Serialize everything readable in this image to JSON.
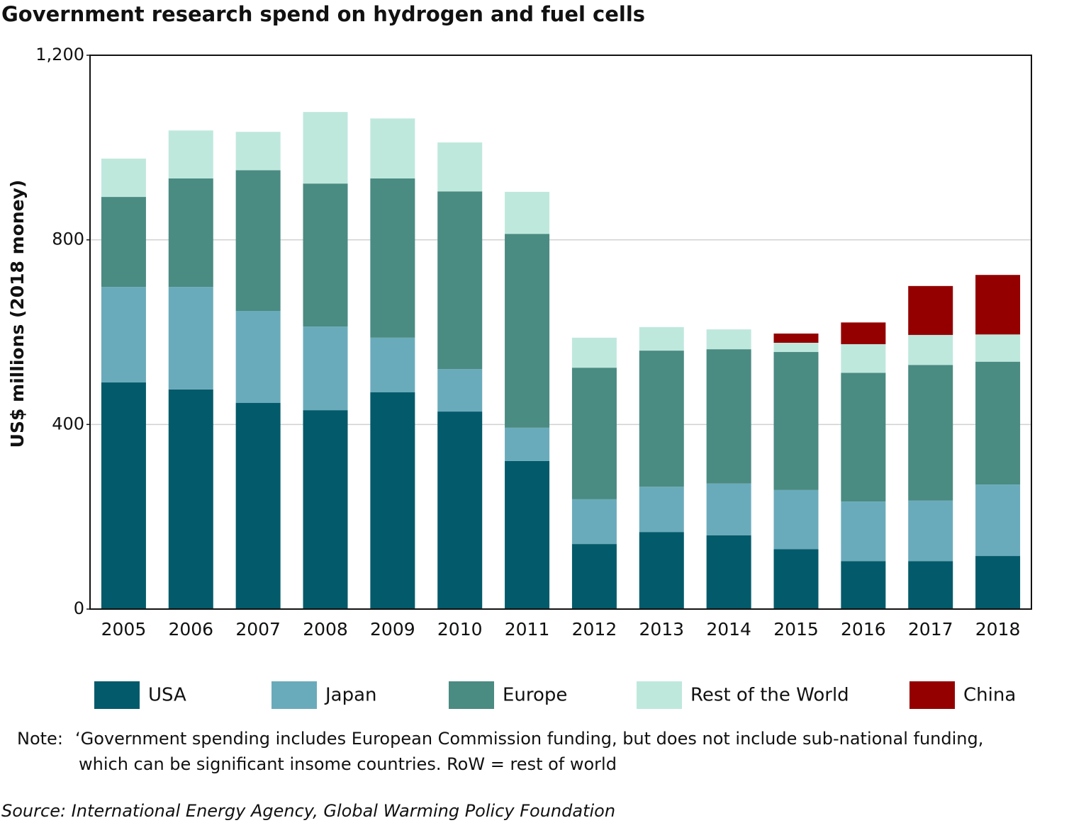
{
  "chart_data": {
    "type": "stacked-bar",
    "title": "Government research spend on hydrogen and fuel cells",
    "y_label": "US$ millions (2018 money)",
    "categories": [
      "2005",
      "2006",
      "2007",
      "2008",
      "2009",
      "2010",
      "2011",
      "2012",
      "2013",
      "2014",
      "2015",
      "2016",
      "2017",
      "2018"
    ],
    "series": [
      {
        "name": "USA",
        "color": "#035a6b",
        "values": [
          491,
          476,
          447,
          431,
          470,
          428,
          321,
          141,
          167,
          160,
          130,
          104,
          104,
          115
        ]
      },
      {
        "name": "Japan",
        "color": "#6aabbb",
        "values": [
          207,
          222,
          199,
          181,
          118,
          92,
          72,
          97,
          98,
          112,
          128,
          129,
          131,
          155
        ]
      },
      {
        "name": "Europe",
        "color": "#4a8b82",
        "values": [
          195,
          235,
          305,
          310,
          345,
          385,
          420,
          285,
          295,
          291,
          299,
          279,
          294,
          266
        ]
      },
      {
        "name": "Rest of the World",
        "color": "#bfe8dd",
        "values": [
          83,
          104,
          83,
          155,
          130,
          106,
          91,
          65,
          51,
          43,
          20,
          62,
          65,
          59
        ]
      },
      {
        "name": "China",
        "color": "#940000",
        "values": [
          null,
          null,
          null,
          null,
          null,
          null,
          null,
          null,
          null,
          null,
          20,
          47,
          106,
          129
        ]
      }
    ],
    "ylim": [
      0,
      1200
    ],
    "yticks": [
      0,
      400,
      800,
      {
        "value": 1200,
        "label": "1,200"
      }
    ],
    "grid": true,
    "note": "Note:",
    "note_lines": [
      "‘Government spending includes European Commission funding, but does not include sub-national funding,",
      "which can be significant insome countries. RoW = rest of world"
    ],
    "source": "Source: International Energy Agency, Global Warming Policy Foundation"
  }
}
